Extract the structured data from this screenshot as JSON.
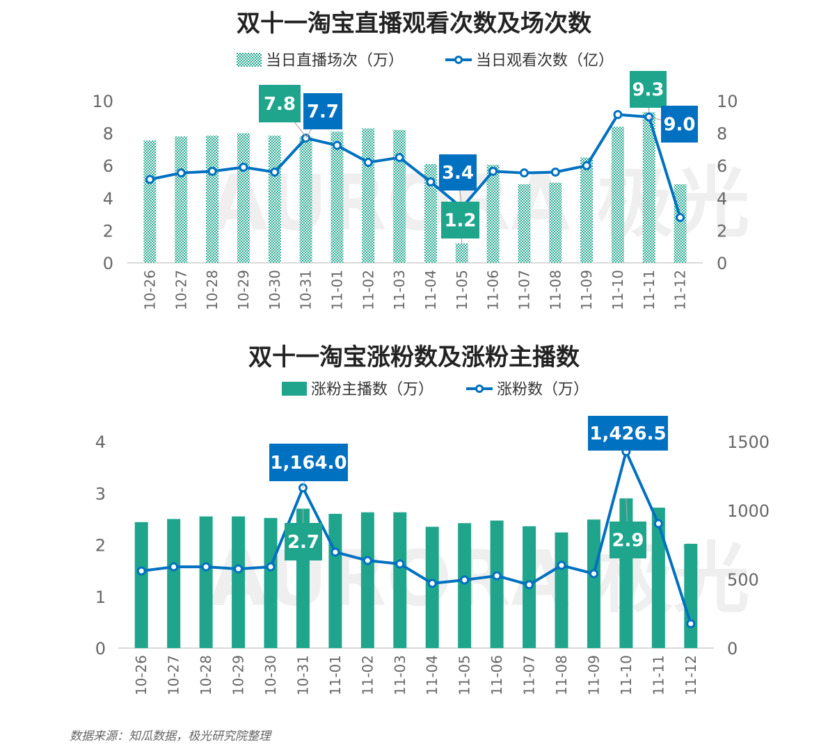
{
  "colors": {
    "bar": "#1FA58C",
    "line": "#0070C0",
    "axis": "#D9D9D9",
    "label_green": "#1FA58C",
    "label_blue": "#0070C0"
  },
  "watermark": "AURORA 极光",
  "source": "数据来源：知瓜数据，极光研究院整理",
  "chart_data": [
    {
      "type": "bar+line",
      "title": "双十一淘宝直播观看次数及场次数",
      "legend_position": "top",
      "categories": [
        "10-26",
        "10-27",
        "10-28",
        "10-29",
        "10-30",
        "10-31",
        "11-01",
        "11-02",
        "11-03",
        "11-04",
        "11-05",
        "11-06",
        "11-07",
        "11-08",
        "11-09",
        "11-10",
        "11-11",
        "11-12"
      ],
      "left_axis": {
        "ylim": [
          0,
          10
        ],
        "ticks": [
          "0",
          "2",
          "4",
          "6",
          "8",
          "10"
        ]
      },
      "right_axis": {
        "ylim": [
          0,
          10
        ],
        "ticks": [
          "0",
          "2",
          "4",
          "6",
          "8",
          "10"
        ]
      },
      "bar_fill": "dotted pattern",
      "series": [
        {
          "name": "当日直播场次（万）",
          "type": "bar",
          "axis": "left",
          "values": [
            7.55,
            7.8,
            7.85,
            8.0,
            7.85,
            7.8,
            8.1,
            8.3,
            8.2,
            6.1,
            1.2,
            6.05,
            4.85,
            4.95,
            6.5,
            8.4,
            9.3,
            4.85
          ]
        },
        {
          "name": "当日观看次数（亿）",
          "type": "line",
          "axis": "right",
          "values": [
            5.15,
            5.55,
            5.65,
            5.9,
            5.6,
            7.7,
            7.25,
            6.2,
            6.5,
            5.0,
            3.4,
            5.65,
            5.55,
            5.6,
            6.0,
            9.15,
            9.0,
            2.8
          ]
        }
      ],
      "data_labels": [
        {
          "series": 0,
          "index": 5,
          "text": "7.8"
        },
        {
          "series": 1,
          "index": 5,
          "text": "7.7"
        },
        {
          "series": 1,
          "index": 10,
          "text": "3.4"
        },
        {
          "series": 0,
          "index": 10,
          "text": "1.2"
        },
        {
          "series": 0,
          "index": 16,
          "text": "9.3"
        },
        {
          "series": 1,
          "index": 16,
          "text": "9.0"
        }
      ]
    },
    {
      "type": "bar+line",
      "title": "双十一淘宝涨粉数及涨粉主播数",
      "legend_position": "top",
      "categories": [
        "10-26",
        "10-27",
        "10-28",
        "10-29",
        "10-30",
        "10-31",
        "11-01",
        "11-02",
        "11-03",
        "11-04",
        "11-05",
        "11-06",
        "11-07",
        "11-08",
        "11-09",
        "11-10",
        "11-11",
        "11-12"
      ],
      "left_axis": {
        "ylim": [
          0,
          4
        ],
        "ticks": [
          "0",
          "1",
          "2",
          "3",
          "4"
        ]
      },
      "right_axis": {
        "ylim": [
          0,
          1500
        ],
        "ticks": [
          "0",
          "500",
          "1000",
          "1500"
        ]
      },
      "series": [
        {
          "name": "涨粉主播数（万）",
          "type": "bar",
          "axis": "left",
          "values": [
            2.44,
            2.5,
            2.55,
            2.55,
            2.52,
            2.7,
            2.6,
            2.63,
            2.63,
            2.35,
            2.42,
            2.47,
            2.36,
            2.24,
            2.49,
            2.9,
            2.72,
            2.02
          ]
        },
        {
          "name": "涨粉数（万）",
          "type": "line",
          "axis": "right",
          "values": [
            560,
            590,
            590,
            575,
            590,
            1164.0,
            697,
            636,
            611,
            470,
            495,
            525,
            460,
            601,
            540,
            1426.5,
            904,
            177
          ]
        }
      ],
      "data_labels": [
        {
          "series": 1,
          "index": 5,
          "text": "1,164.0"
        },
        {
          "series": 0,
          "index": 5,
          "text": "2.7"
        },
        {
          "series": 1,
          "index": 15,
          "text": "1,426.5"
        },
        {
          "series": 0,
          "index": 15,
          "text": "2.9"
        }
      ]
    }
  ]
}
